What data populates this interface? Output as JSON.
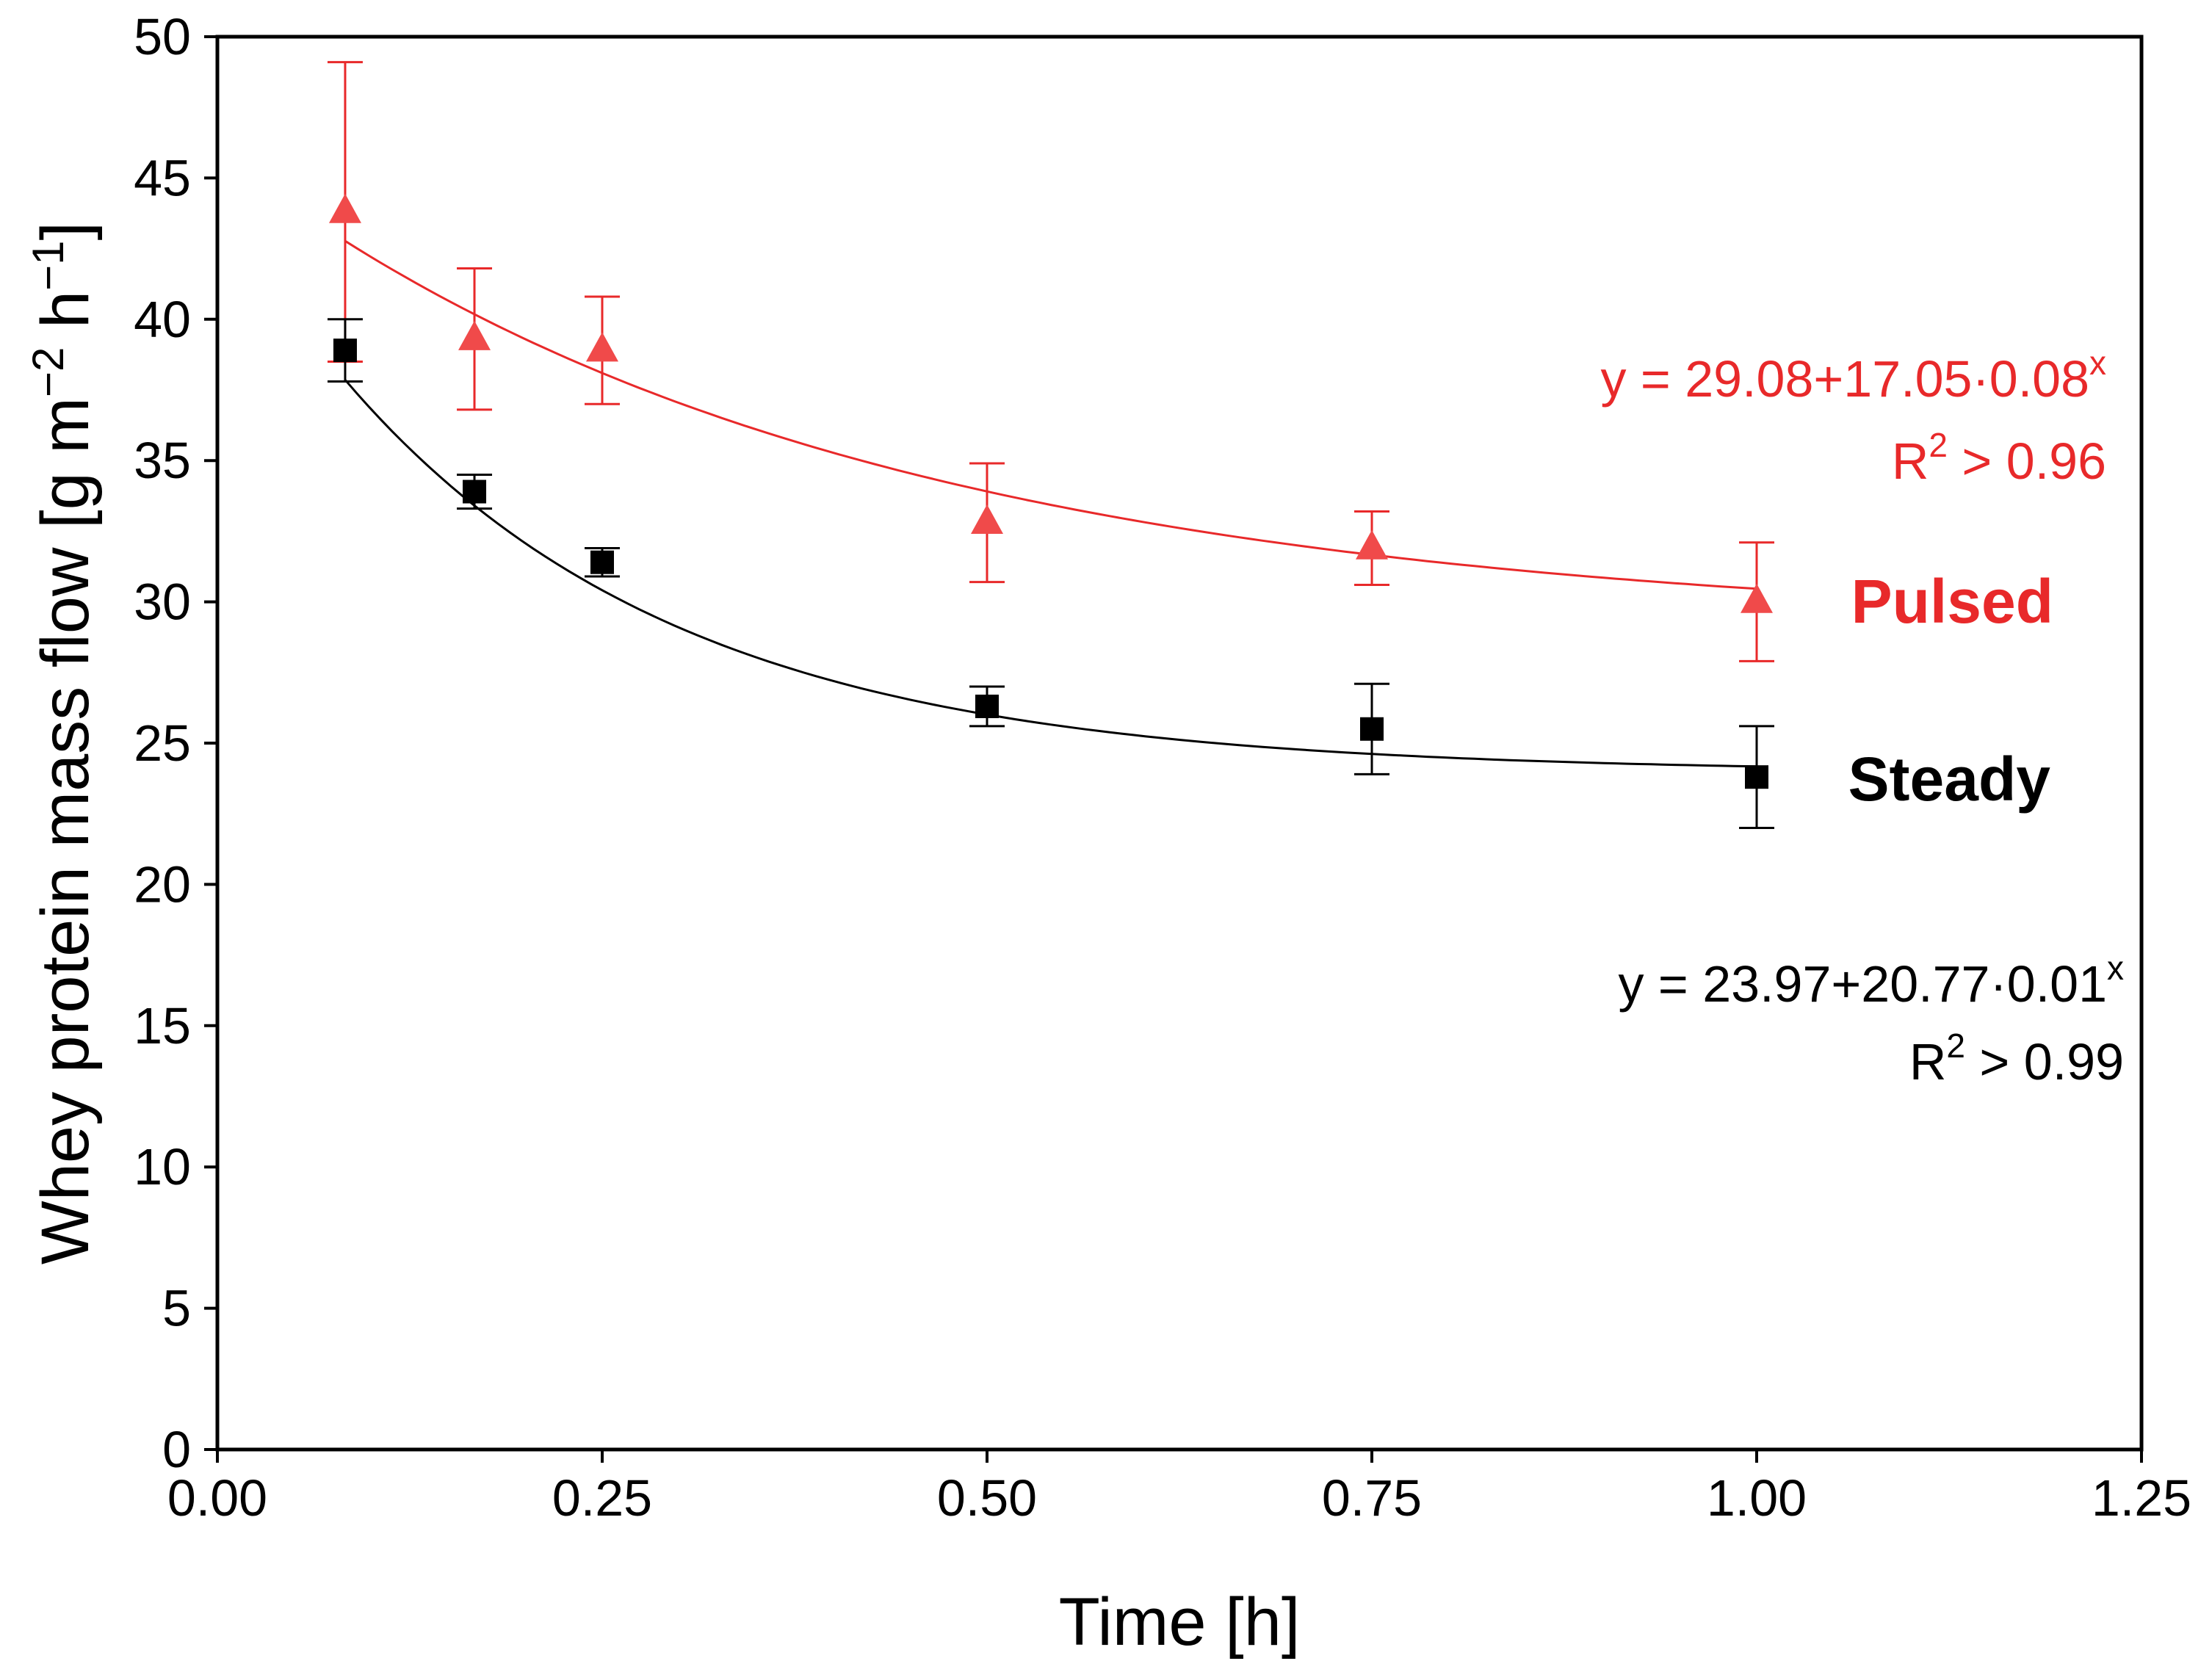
{
  "colors": {
    "steady": "#000000",
    "pulsed": "#e8292a",
    "pulsed_fill": "#f04a4a",
    "axis": "#000000"
  },
  "chart_data": {
    "type": "scatter",
    "title": "",
    "xlabel": "Time [h]",
    "ylabel_main": "Whey protein mass flow [g m",
    "ylabel_exp1": "−2",
    "ylabel_mid": " h",
    "ylabel_exp2": "−1",
    "ylabel_end": "]",
    "xlim": [
      0,
      1.25
    ],
    "ylim": [
      0,
      50
    ],
    "grid": false,
    "x_ticks": [
      0,
      0.25,
      0.5,
      0.75,
      1.0,
      1.25
    ],
    "x_tick_labels": [
      "0.00",
      "0.25",
      "0.50",
      "0.75",
      "1.00",
      "1.25"
    ],
    "y_ticks": [
      0,
      5,
      10,
      15,
      20,
      25,
      30,
      35,
      40,
      45,
      50
    ],
    "y_tick_labels": [
      "0",
      "5",
      "10",
      "15",
      "20",
      "25",
      "30",
      "35",
      "40",
      "45",
      "50"
    ],
    "series": [
      {
        "name": "Pulsed",
        "marker": "triangle",
        "x": [
          0.083,
          0.167,
          0.25,
          0.5,
          0.75,
          1.0
        ],
        "y": [
          43.8,
          39.3,
          38.9,
          32.8,
          31.9,
          30.0
        ],
        "err": [
          5.3,
          2.5,
          1.9,
          2.1,
          1.3,
          2.1
        ],
        "fit": {
          "a": 29.08,
          "b": 17.05,
          "c": 0.08,
          "x_range": [
            0.083,
            1.0
          ]
        },
        "equation": "y = 29.08+17.05·0.08",
        "equation_sup": "x",
        "r2_prefix": "R",
        "r2_sup": "2",
        "r2_suffix": " > 0.96",
        "label": "Pulsed"
      },
      {
        "name": "Steady",
        "marker": "square",
        "x": [
          0.083,
          0.167,
          0.25,
          0.5,
          0.75,
          1.0
        ],
        "y": [
          38.9,
          33.9,
          31.4,
          26.3,
          25.5,
          23.8
        ],
        "err": [
          1.1,
          0.6,
          0.5,
          0.7,
          1.6,
          1.8
        ],
        "fit": {
          "a": 23.97,
          "b": 20.77,
          "c": 0.01,
          "x_range": [
            0.083,
            1.0
          ]
        },
        "equation": "y = 23.97+20.77·0.01",
        "equation_sup": "x",
        "r2_prefix": "R",
        "r2_sup": "2",
        "r2_suffix": " > 0.99",
        "label": "Steady"
      }
    ]
  }
}
